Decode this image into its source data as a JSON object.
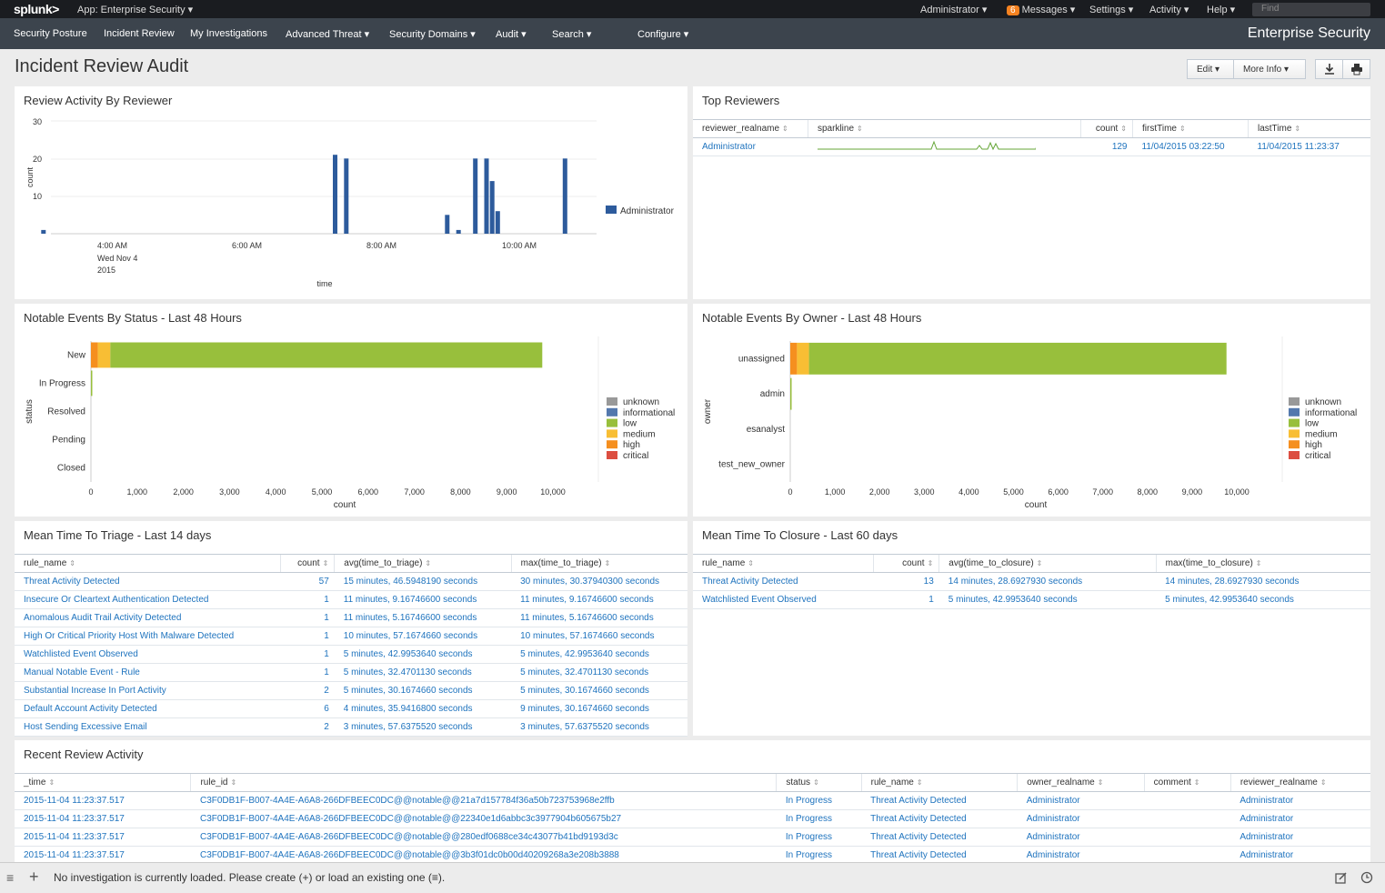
{
  "topbar": {
    "logo": "splunk>",
    "app": "App: Enterprise Security ▾",
    "administrator": "Administrator ▾",
    "messages_count": "6",
    "messages": "Messages ▾",
    "settings": "Settings ▾",
    "activity": "Activity ▾",
    "help": "Help ▾",
    "find_placeholder": "Find"
  },
  "nav": {
    "items": [
      "Security Posture",
      "Incident Review",
      "My Investigations",
      "Advanced Threat ▾",
      "Security Domains ▾",
      "Audit ▾",
      "Search ▾",
      "Configure ▾"
    ],
    "brand": "Enterprise Security"
  },
  "page": {
    "title": "Incident Review Audit",
    "edit": "Edit ▾",
    "more_info": "More Info ▾",
    "download_icon": "download-icon",
    "print_icon": "print-icon"
  },
  "review_activity": {
    "title": "Review Activity By Reviewer",
    "ylabel": "count",
    "xlabel": "time",
    "yticks": [
      "30",
      "20",
      "10"
    ],
    "xticks": [
      "4:00 AM",
      "6:00 AM",
      "8:00 AM",
      "10:00 AM"
    ],
    "xtick_sub1": "Wed Nov 4",
    "xtick_sub2": "2015",
    "legend": "Administrator",
    "color": "#2d5b9c"
  },
  "chart_data": [
    {
      "type": "bar",
      "title": "Review Activity By Reviewer",
      "xlabel": "time",
      "ylabel": "count",
      "ylim": [
        0,
        30
      ],
      "series": [
        {
          "name": "Administrator",
          "values": [
            1,
            21,
            20,
            5,
            1,
            20,
            20,
            14,
            6,
            20
          ]
        }
      ],
      "x": [
        "3:10 AM",
        "7:30 AM",
        "7:40 AM",
        "9:10 AM",
        "9:20 AM",
        "9:35 AM",
        "9:45 AM",
        "9:50 AM",
        "9:55 AM",
        "10:55 AM"
      ]
    },
    {
      "type": "bar",
      "title": "Notable Events By Status - Last 48 Hours",
      "xlabel": "count",
      "ylabel": "status",
      "categories": [
        "New",
        "In Progress",
        "Resolved",
        "Pending",
        "Closed"
      ],
      "xticks": [
        "0",
        "1,000",
        "2,000",
        "3,000",
        "4,000",
        "5,000",
        "6,000",
        "7,000",
        "8,000",
        "9,000",
        "10,000"
      ],
      "series": [
        {
          "name": "high",
          "values": [
            150,
            0,
            0,
            0,
            0
          ]
        },
        {
          "name": "medium",
          "values": [
            270,
            0,
            0,
            0,
            0
          ]
        },
        {
          "name": "low",
          "values": [
            9350,
            30,
            0,
            0,
            0
          ]
        }
      ],
      "legend": [
        "unknown",
        "informational",
        "low",
        "medium",
        "high",
        "critical"
      ],
      "colors": [
        "#999999",
        "#5378ad",
        "#98bf3c",
        "#f8be34",
        "#f58f1f",
        "#dc4e41"
      ]
    },
    {
      "type": "bar",
      "title": "Notable Events By Owner - Last 48 Hours",
      "xlabel": "count",
      "ylabel": "owner",
      "categories": [
        "unassigned",
        "admin",
        "esanalyst",
        "test_new_owner"
      ],
      "xticks": [
        "0",
        "1,000",
        "2,000",
        "3,000",
        "4,000",
        "5,000",
        "6,000",
        "7,000",
        "8,000",
        "9,000",
        "10,000"
      ],
      "series": [
        {
          "name": "high",
          "values": [
            150,
            0,
            0,
            0
          ]
        },
        {
          "name": "medium",
          "values": [
            270,
            0,
            0,
            0
          ]
        },
        {
          "name": "low",
          "values": [
            9350,
            30,
            0,
            0
          ]
        }
      ],
      "legend": [
        "unknown",
        "informational",
        "low",
        "medium",
        "high",
        "critical"
      ],
      "colors": [
        "#999999",
        "#5378ad",
        "#98bf3c",
        "#f8be34",
        "#f58f1f",
        "#dc4e41"
      ]
    }
  ],
  "status_chart": {
    "title": "Notable Events By Status - Last 48 Hours",
    "ylabel": "status",
    "xlabel": "count"
  },
  "owner_chart": {
    "title": "Notable Events By Owner - Last 48 Hours",
    "ylabel": "owner",
    "xlabel": "count"
  },
  "top_reviewers": {
    "title": "Top Reviewers",
    "columns": [
      "reviewer_realname",
      "sparkline",
      "count",
      "firstTime",
      "lastTime"
    ],
    "rows": [
      [
        "Administrator",
        "",
        "129",
        "11/04/2015 03:22:50",
        "11/04/2015 11:23:37"
      ]
    ]
  },
  "triage": {
    "title": "Mean Time To Triage - Last 14 days",
    "columns": [
      "rule_name",
      "count",
      "avg(time_to_triage)",
      "max(time_to_triage)"
    ],
    "rows": [
      [
        "Threat Activity Detected",
        "57",
        "15 minutes, 46.5948190 seconds",
        "30 minutes, 30.37940300 seconds"
      ],
      [
        "Insecure Or Cleartext Authentication Detected",
        "1",
        "11 minutes, 9.16746600 seconds",
        "11 minutes, 9.16746600 seconds"
      ],
      [
        "Anomalous Audit Trail Activity Detected",
        "1",
        "11 minutes, 5.16746600 seconds",
        "11 minutes, 5.16746600 seconds"
      ],
      [
        "High Or Critical Priority Host With Malware Detected",
        "1",
        "10 minutes, 57.1674660 seconds",
        "10 minutes, 57.1674660 seconds"
      ],
      [
        "Watchlisted Event Observed",
        "1",
        "5 minutes, 42.9953640 seconds",
        "5 minutes, 42.9953640 seconds"
      ],
      [
        "Manual Notable Event - Rule",
        "1",
        "5 minutes, 32.4701130 seconds",
        "5 minutes, 32.4701130 seconds"
      ],
      [
        "Substantial Increase In Port Activity",
        "2",
        "5 minutes, 30.1674660 seconds",
        "5 minutes, 30.1674660 seconds"
      ],
      [
        "Default Account Activity Detected",
        "6",
        "4 minutes, 35.9416800 seconds",
        "9 minutes, 30.1674660 seconds"
      ],
      [
        "Host Sending Excessive Email",
        "2",
        "3 minutes, 57.6375520 seconds",
        "3 minutes, 57.6375520 seconds"
      ]
    ]
  },
  "closure": {
    "title": "Mean Time To Closure - Last 60 days",
    "columns": [
      "rule_name",
      "count",
      "avg(time_to_closure)",
      "max(time_to_closure)"
    ],
    "rows": [
      [
        "Threat Activity Detected",
        "13",
        "14 minutes, 28.6927930 seconds",
        "14 minutes, 28.6927930 seconds"
      ],
      [
        "Watchlisted Event Observed",
        "1",
        "5 minutes, 42.9953640 seconds",
        "5 minutes, 42.9953640 seconds"
      ]
    ]
  },
  "recent": {
    "title": "Recent Review Activity",
    "columns": [
      "_time",
      "rule_id",
      "status",
      "rule_name",
      "owner_realname",
      "comment",
      "reviewer_realname"
    ],
    "rows": [
      [
        "2015-11-04 11:23:37.517",
        "C3F0DB1F-B007-4A4E-A6A8-266DFBEEC0DC@@notable@@21a7d157784f36a50b723753968e2ffb",
        "In Progress",
        "Threat Activity Detected",
        "Administrator",
        "",
        "Administrator"
      ],
      [
        "2015-11-04 11:23:37.517",
        "C3F0DB1F-B007-4A4E-A6A8-266DFBEEC0DC@@notable@@22340e1d6abbc3c3977904b605675b27",
        "In Progress",
        "Threat Activity Detected",
        "Administrator",
        "",
        "Administrator"
      ],
      [
        "2015-11-04 11:23:37.517",
        "C3F0DB1F-B007-4A4E-A6A8-266DFBEEC0DC@@notable@@280edf0688ce34c43077b41bd9193d3c",
        "In Progress",
        "Threat Activity Detected",
        "Administrator",
        "",
        "Administrator"
      ],
      [
        "2015-11-04 11:23:37.517",
        "C3F0DB1F-B007-4A4E-A6A8-266DFBEEC0DC@@notable@@3b3f01dc0b00d40209268a3e208b3888",
        "In Progress",
        "Threat Activity Detected",
        "Administrator",
        "",
        "Administrator"
      ]
    ]
  },
  "bottom": {
    "message": "No investigation is currently loaded. Please create (+) or load an existing one (≡)."
  }
}
